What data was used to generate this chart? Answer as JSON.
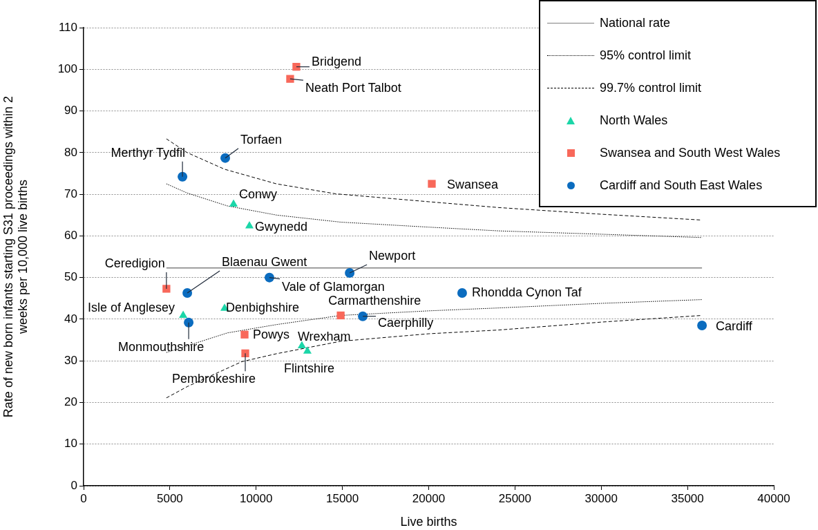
{
  "chart_data": {
    "type": "scatter",
    "xlabel": "Live births",
    "ylabel": "Rate of new born infants starting S31 proceedings within 2 weeks per 10,000 live births",
    "xlim": [
      0,
      40000
    ],
    "xticks": [
      0,
      5000,
      10000,
      15000,
      20000,
      25000,
      30000,
      35000,
      40000
    ],
    "ylim": [
      0,
      110
    ],
    "yticks": [
      0,
      10,
      20,
      30,
      40,
      50,
      60,
      70,
      80,
      90,
      100,
      110
    ],
    "grid": "y",
    "legend": "top right",
    "series": [
      {
        "name": "National rate",
        "type": "line",
        "color": "#808080",
        "line_style": "solid",
        "marker": "none",
        "x": [
          4800,
          35840
        ],
        "values": [
          52.3,
          52.3
        ]
      },
      {
        "name": "95% control limit",
        "type": "line",
        "color": "#000000",
        "line_style": "dotted",
        "marker": "none",
        "x": [
          4800,
          6000,
          8330,
          11170,
          14900,
          20000,
          24060,
          30000,
          35840
        ],
        "values": [
          72.5,
          70.3,
          67.2,
          65.0,
          63.3,
          62.1,
          61.2,
          60.4,
          59.6
        ]
      },
      {
        "type": "line",
        "color": "#000000",
        "line_style": "dotted",
        "marker": "none",
        "x": [
          4800,
          6000,
          8330,
          11170,
          14900,
          20000,
          24060,
          30000,
          35840
        ],
        "values": [
          32.0,
          33.6,
          36.7,
          38.7,
          40.9,
          42.0,
          42.7,
          43.8,
          44.7
        ]
      },
      {
        "name": "99.7% control limit",
        "type": "line",
        "color": "#000000",
        "line_style": "dashed",
        "marker": "none",
        "x": [
          4800,
          6000,
          8170,
          11170,
          14610,
          20000,
          24060,
          30000,
          35840
        ],
        "values": [
          83.3,
          80.0,
          76.0,
          72.5,
          70.1,
          68.2,
          66.8,
          65.2,
          63.8
        ]
      },
      {
        "type": "line",
        "color": "#000000",
        "line_style": "dashed",
        "marker": "none",
        "x": [
          4800,
          6000,
          9170,
          11170,
          14900,
          20000,
          24060,
          30000,
          35840
        ],
        "values": [
          21.1,
          23.8,
          29.8,
          31.7,
          34.7,
          36.5,
          37.4,
          39.3,
          40.9
        ]
      },
      {
        "name": "North Wales",
        "color": "#1bd6a8",
        "marker": "triangle",
        "x": [
          8690,
          9610,
          5770,
          8170,
          12650,
          12970
        ],
        "values": [
          67.6,
          62.4,
          40.9,
          42.6,
          33.6,
          32.3
        ]
      },
      {
        "name": "Swansea and South West Wales",
        "color": "#f8685a",
        "marker": "square",
        "x": [
          12330,
          11970,
          20180,
          4800,
          14900,
          9330,
          9370
        ],
        "values": [
          100.6,
          97.7,
          72.5,
          47.3,
          40.9,
          36.3,
          31.8
        ]
      },
      {
        "name": "Cardiff and South East Wales",
        "color": "#0b6cbf",
        "marker": "circle",
        "x": [
          8210,
          5730,
          6010,
          10770,
          15420,
          6090,
          16180,
          21940,
          35840
        ],
        "values": [
          78.7,
          74.2,
          46.3,
          50.0,
          51.1,
          39.2,
          40.7,
          46.3,
          38.5
        ]
      }
    ],
    "annotations": [
      {
        "text": "Conwy",
        "x": 8690,
        "y": 67.6
      },
      {
        "text": "Gwynedd",
        "x": 9610,
        "y": 62.4
      },
      {
        "text": "Isle of Anglesey",
        "x": 5770,
        "y": 40.9
      },
      {
        "text": "Denbighshire",
        "x": 8170,
        "y": 42.6
      },
      {
        "text": "Wrexham",
        "x": 12650,
        "y": 33.6
      },
      {
        "text": "Flintshire",
        "x": 12970,
        "y": 32.3
      },
      {
        "text": "Bridgend",
        "x": 12330,
        "y": 100.6
      },
      {
        "text": "Neath Port Talbot",
        "x": 11970,
        "y": 97.7
      },
      {
        "text": "Swansea",
        "x": 20180,
        "y": 72.5
      },
      {
        "text": "Ceredigion",
        "x": 4800,
        "y": 47.3
      },
      {
        "text": "Carmarthenshire",
        "x": 14900,
        "y": 40.9
      },
      {
        "text": "Powys",
        "x": 9330,
        "y": 36.3
      },
      {
        "text": "Pembrokeshire",
        "x": 9370,
        "y": 31.8
      },
      {
        "text": "Torfaen",
        "x": 8210,
        "y": 78.7
      },
      {
        "text": "Merthyr Tydfil",
        "x": 5730,
        "y": 74.2
      },
      {
        "text": "Blaenau Gwent",
        "x": 6010,
        "y": 46.3
      },
      {
        "text": "Vale of Glamorgan",
        "x": 10770,
        "y": 50.0
      },
      {
        "text": "Newport",
        "x": 15420,
        "y": 51.1
      },
      {
        "text": "Monmouthshire",
        "x": 6090,
        "y": 39.2
      },
      {
        "text": "Caerphilly",
        "x": 16180,
        "y": 40.7
      },
      {
        "text": "Rhondda Cynon Taf",
        "x": 21940,
        "y": 46.3
      },
      {
        "text": "Cardiff",
        "x": 35840,
        "y": 38.5
      }
    ]
  }
}
